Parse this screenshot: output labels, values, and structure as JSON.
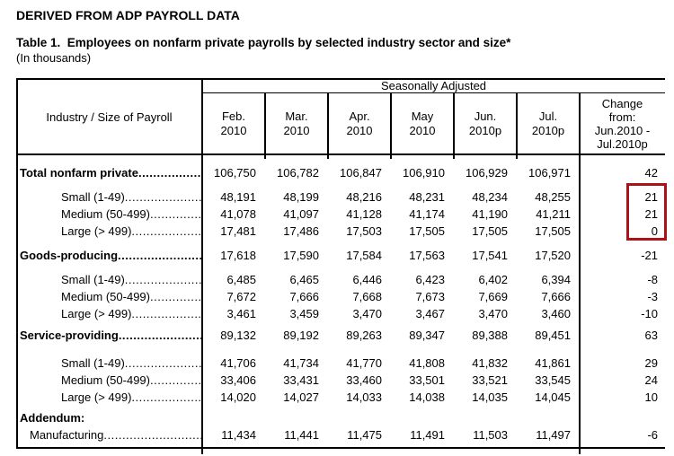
{
  "page": {
    "heading": "DERIVED FROM ADP PAYROLL DATA",
    "table_title": "Table 1.  Employees on nonfarm private payrolls by selected industry sector and size*",
    "units_note": "(In thousands)"
  },
  "table": {
    "group_header": "Seasonally Adjusted",
    "row_header": "Industry / Size of Payroll",
    "month_columns": [
      {
        "month": "Feb.",
        "year": "2010"
      },
      {
        "month": "Mar.",
        "year": "2010"
      },
      {
        "month": "Apr.",
        "year": "2010"
      },
      {
        "month": "May",
        "year": "2010"
      },
      {
        "month": "Jun.",
        "year": "2010p"
      },
      {
        "month": "Jul.",
        "year": "2010p"
      }
    ],
    "change_column": [
      "Change",
      "from:",
      "Jun.2010 -",
      "Jul.2010p"
    ],
    "rows": [
      {
        "id": "total",
        "kind": "section",
        "label": "Total nonfarm private",
        "dots": true,
        "values": [
          "106,750",
          "106,782",
          "106,847",
          "106,910",
          "106,929",
          "106,971"
        ],
        "change": "42"
      },
      {
        "id": "total-small",
        "kind": "sub",
        "label": "Small (1-49)",
        "dots": true,
        "values": [
          "48,191",
          "48,199",
          "48,216",
          "48,231",
          "48,234",
          "48,255"
        ],
        "change": "21"
      },
      {
        "id": "total-medium",
        "kind": "sub",
        "label": "Medium (50-499)",
        "dots": true,
        "values": [
          "41,078",
          "41,097",
          "41,128",
          "41,174",
          "41,190",
          "41,211"
        ],
        "change": "21"
      },
      {
        "id": "total-large",
        "kind": "sub",
        "label": "Large (> 499)",
        "dots": true,
        "values": [
          "17,481",
          "17,486",
          "17,503",
          "17,505",
          "17,505",
          "17,505"
        ],
        "change": "0"
      },
      {
        "id": "goods",
        "kind": "section",
        "label": "Goods-producing",
        "dots": true,
        "values": [
          "17,618",
          "17,590",
          "17,584",
          "17,563",
          "17,541",
          "17,520"
        ],
        "change": "-21"
      },
      {
        "id": "goods-small",
        "kind": "sub",
        "label": "Small (1-49)",
        "dots": true,
        "values": [
          "6,485",
          "6,465",
          "6,446",
          "6,423",
          "6,402",
          "6,394"
        ],
        "change": "-8"
      },
      {
        "id": "goods-medium",
        "kind": "sub",
        "label": "Medium (50-499)",
        "dots": true,
        "values": [
          "7,672",
          "7,666",
          "7,668",
          "7,673",
          "7,669",
          "7,666"
        ],
        "change": "-3"
      },
      {
        "id": "goods-large",
        "kind": "sub",
        "label": "Large (> 499)",
        "dots": true,
        "values": [
          "3,461",
          "3,459",
          "3,470",
          "3,467",
          "3,470",
          "3,460"
        ],
        "change": "-10"
      },
      {
        "id": "services",
        "kind": "section",
        "label": "Service-providing",
        "dots": true,
        "values": [
          "89,132",
          "89,192",
          "89,263",
          "89,347",
          "89,388",
          "89,451"
        ],
        "change": "63"
      },
      {
        "id": "services-small",
        "kind": "sub",
        "label": "Small (1-49)",
        "dots": true,
        "values": [
          "41,706",
          "41,734",
          "41,770",
          "41,808",
          "41,832",
          "41,861"
        ],
        "change": "29"
      },
      {
        "id": "services-medium",
        "kind": "sub",
        "label": "Medium (50-499)",
        "dots": true,
        "values": [
          "33,406",
          "33,431",
          "33,460",
          "33,501",
          "33,521",
          "33,545"
        ],
        "change": "24"
      },
      {
        "id": "services-large",
        "kind": "sub",
        "label": "Large (> 499)",
        "dots": true,
        "values": [
          "14,020",
          "14,027",
          "14,033",
          "14,038",
          "14,035",
          "14,045"
        ],
        "change": "10"
      },
      {
        "id": "addendum",
        "kind": "addendum-header",
        "label": "Addendum:",
        "dots": false,
        "values": null,
        "change": null
      },
      {
        "id": "manufacturing",
        "kind": "addendum-row",
        "label": "Manufacturing",
        "dots": true,
        "values": [
          "11,434",
          "11,441",
          "11,475",
          "11,491",
          "11,503",
          "11,497"
        ],
        "change": "-6"
      }
    ]
  },
  "annotation": {
    "highlight_border_color": "#aa1418",
    "highlighted_values": [
      "21",
      "21",
      "0"
    ]
  },
  "misc": {
    "leader_dots": "................................................................................"
  }
}
